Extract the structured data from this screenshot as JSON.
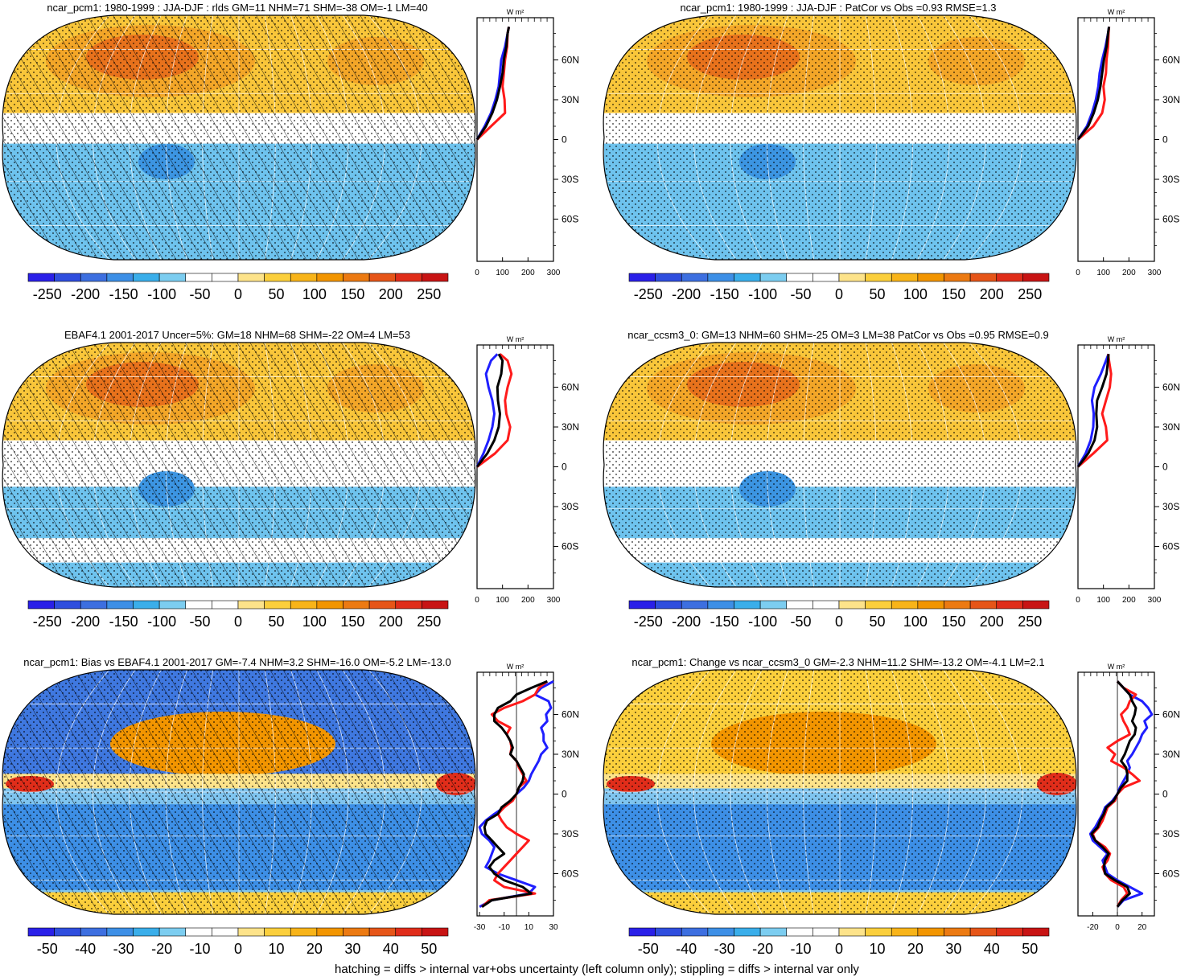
{
  "footer": "hatching = diffs > internal var+obs uncertainty (left column only); stippling = diffs > internal var only",
  "colors": {
    "obs_line": "#000000",
    "nh_line": "#1f1fff",
    "sh_line": "#ff1a1a",
    "coastline": "#000000",
    "graticule": "#ffffff"
  },
  "chart_data": [
    {
      "type": "heatmap",
      "title": "ncar_pcm1: 1980-1999 : JJA-DJF : rlds GM=11 NHM=71 SHM=-38 OM=-1 LM=40",
      "projection": "Robinson, centered on 150E",
      "pattern": "hatching + stippling",
      "colorbar": {
        "ticks": [
          "-250",
          "-200",
          "-150",
          "-100",
          "-50",
          "0",
          "50",
          "100",
          "150",
          "200",
          "250"
        ],
        "range": [
          -275,
          275
        ]
      },
      "zonal_mean": {
        "unit": "W m²",
        "xticks": [
          "0",
          "100",
          "200",
          "300"
        ],
        "xlim": [
          0,
          300
        ],
        "yticks": [
          "60N",
          "30N",
          "0",
          "30S",
          "60S"
        ],
        "lat": [
          0,
          10,
          20,
          30,
          40,
          50,
          60,
          70,
          80,
          85
        ],
        "series": [
          {
            "color": "blue",
            "values": [
              0,
              30,
              55,
              72,
              85,
              90,
              95,
              110,
              120,
              125
            ]
          },
          {
            "color": "red",
            "values": [
              0,
              55,
              110,
              108,
              100,
              105,
              110,
              118,
              120,
              125
            ]
          },
          {
            "color": "black",
            "values": [
              0,
              35,
              60,
              78,
              90,
              100,
              105,
              115,
              120,
              125
            ]
          }
        ]
      }
    },
    {
      "type": "heatmap",
      "title": "ncar_pcm1: 1980-1999 : JJA-DJF : PatCor vs Obs =0.93 RMSE=1.3",
      "projection": "Robinson, centered on 150E",
      "pattern": "stippling",
      "colorbar": {
        "ticks": [
          "-250",
          "-200",
          "-150",
          "-100",
          "-50",
          "0",
          "50",
          "100",
          "150",
          "200",
          "250"
        ],
        "range": [
          -275,
          275
        ]
      },
      "zonal_mean": {
        "unit": "W m²",
        "xticks": [
          "0",
          "100",
          "200",
          "300"
        ],
        "xlim": [
          0,
          300
        ],
        "yticks": [
          "60N",
          "30N",
          "0",
          "30S",
          "60S"
        ],
        "lat": [
          0,
          10,
          20,
          30,
          40,
          50,
          60,
          70,
          80,
          85
        ],
        "series": [
          {
            "color": "blue",
            "values": [
              0,
              35,
              55,
              70,
              80,
              85,
              95,
              108,
              118,
              122
            ]
          },
          {
            "color": "red",
            "values": [
              0,
              60,
              95,
              105,
              100,
              110,
              112,
              118,
              120,
              122
            ]
          },
          {
            "color": "black",
            "values": [
              0,
              40,
              62,
              78,
              88,
              95,
              102,
              112,
              118,
              122
            ]
          }
        ]
      }
    },
    {
      "type": "heatmap",
      "title": "EBAF4.1 2001-2017 Uncer=5%: GM=18 NHM=68 SHM=-22 OM=4 LM=53",
      "projection": "Robinson, centered on 150E",
      "pattern": "hatching + stippling",
      "colorbar": {
        "ticks": [
          "-250",
          "-200",
          "-150",
          "-100",
          "-50",
          "0",
          "50",
          "100",
          "150",
          "200",
          "250"
        ],
        "range": [
          -275,
          275
        ]
      },
      "zonal_mean": {
        "unit": "W m²",
        "xticks": [
          "0",
          "100",
          "200",
          "300"
        ],
        "xlim": [
          0,
          300
        ],
        "yticks": [
          "60N",
          "30N",
          "0",
          "30S",
          "60S"
        ],
        "lat": [
          0,
          10,
          20,
          30,
          40,
          50,
          60,
          70,
          80,
          85
        ],
        "series": [
          {
            "color": "blue",
            "values": [
              0,
              25,
              45,
              60,
              68,
              60,
              45,
              35,
              55,
              80
            ]
          },
          {
            "color": "red",
            "values": [
              0,
              70,
              120,
              130,
              115,
              110,
              120,
              135,
              120,
              90
            ]
          },
          {
            "color": "black",
            "values": [
              0,
              40,
              68,
              85,
              90,
              82,
              80,
              95,
              100,
              85
            ]
          }
        ]
      }
    },
    {
      "type": "heatmap",
      "title": "ncar_ccsm3_0: GM=13 NHM=60 SHM=-25 OM=3 LM=38 PatCor vs Obs =0.95 RMSE=0.9",
      "projection": "Robinson, centered on 150E",
      "pattern": "stippling",
      "colorbar": {
        "ticks": [
          "-250",
          "-200",
          "-150",
          "-100",
          "-50",
          "0",
          "50",
          "100",
          "150",
          "200",
          "250"
        ],
        "range": [
          -275,
          275
        ]
      },
      "zonal_mean": {
        "unit": "W m²",
        "xticks": [
          "0",
          "100",
          "200",
          "300"
        ],
        "xlim": [
          0,
          300
        ],
        "yticks": [
          "60N",
          "30N",
          "0",
          "30S",
          "60S"
        ],
        "lat": [
          0,
          10,
          20,
          30,
          40,
          50,
          60,
          70,
          80,
          85
        ],
        "series": [
          {
            "color": "blue",
            "values": [
              0,
              30,
              50,
              60,
              62,
              55,
              65,
              90,
              110,
              120
            ]
          },
          {
            "color": "red",
            "values": [
              0,
              60,
              115,
              110,
              95,
              110,
              125,
              130,
              122,
              118
            ]
          },
          {
            "color": "black",
            "values": [
              0,
              40,
              65,
              75,
              72,
              75,
              95,
              112,
              118,
              120
            ]
          }
        ]
      }
    },
    {
      "type": "heatmap",
      "title": "ncar_pcm1: Bias vs EBAF4.1 2001-2017 GM=-7.4 NHM=3.2 SHM=-16.0 OM=-5.2 LM=-13.0",
      "projection": "Robinson, centered on 150E",
      "pattern": "hatching + stippling",
      "colorbar": {
        "ticks": [
          "-50",
          "-40",
          "-30",
          "-20",
          "-10",
          "0",
          "10",
          "20",
          "30",
          "40",
          "50"
        ],
        "range": [
          -55,
          55
        ]
      },
      "zonal_mean": {
        "unit": "W m²",
        "xticks": [
          "-30",
          "-10",
          "10",
          "30"
        ],
        "xlim": [
          -32,
          30
        ],
        "yticks": [
          "60N",
          "30N",
          "0",
          "30S",
          "60S"
        ],
        "lat": [
          -85,
          -80,
          -75,
          -70,
          -65,
          -60,
          -55,
          -50,
          -45,
          -40,
          -35,
          -30,
          -25,
          -20,
          -15,
          -10,
          -5,
          0,
          5,
          10,
          15,
          20,
          25,
          30,
          35,
          40,
          45,
          50,
          55,
          60,
          65,
          70,
          75,
          80,
          85
        ],
        "series": [
          {
            "color": "blue",
            "values": [
              -30,
              -20,
              10,
              15,
              0,
              -15,
              -25,
              -22,
              -20,
              -18,
              -22,
              -28,
              -30,
              -25,
              -18,
              -10,
              -4,
              0,
              6,
              10,
              12,
              15,
              18,
              20,
              25,
              22,
              22,
              20,
              25,
              24,
              28,
              26,
              15,
              20,
              30
            ]
          },
          {
            "color": "red",
            "values": [
              -28,
              -22,
              15,
              -10,
              -18,
              -15,
              -10,
              -5,
              0,
              5,
              10,
              0,
              -8,
              -12,
              -15,
              -10,
              -3,
              0,
              2,
              8,
              5,
              2,
              0,
              -5,
              -4,
              -5,
              -8,
              -5,
              -15,
              -20,
              -10,
              5,
              15,
              18,
              25
            ]
          },
          {
            "color": "black",
            "values": [
              -28,
              -20,
              12,
              5,
              -10,
              -18,
              -22,
              -18,
              -10,
              -15,
              -20,
              -25,
              -26,
              -24,
              -15,
              -12,
              -5,
              0,
              2,
              5,
              6,
              3,
              0,
              -5,
              -3,
              -5,
              -8,
              -12,
              -18,
              -18,
              -15,
              -5,
              0,
              12,
              25
            ]
          }
        ]
      }
    },
    {
      "type": "heatmap",
      "title": "ncar_pcm1: Change vs ncar_ccsm3_0 GM=-2.3 NHM=11.2 SHM=-13.2 OM=-4.1 LM=2.1",
      "projection": "Robinson, centered on 150E",
      "pattern": "stippling",
      "colorbar": {
        "ticks": [
          "-50",
          "-40",
          "-30",
          "-20",
          "-10",
          "0",
          "10",
          "20",
          "30",
          "40",
          "50"
        ],
        "range": [
          -55,
          55
        ]
      },
      "zonal_mean": {
        "unit": "W m²",
        "xticks": [
          "-20",
          "0",
          "20"
        ],
        "xlim": [
          -32,
          30
        ],
        "yticks": [
          "60N",
          "30N",
          "0",
          "30S",
          "60S"
        ],
        "lat": [
          -85,
          -80,
          -75,
          -70,
          -65,
          -60,
          -55,
          -50,
          -45,
          -40,
          -35,
          -30,
          -25,
          -20,
          -15,
          -10,
          -5,
          0,
          5,
          10,
          15,
          20,
          25,
          30,
          35,
          40,
          45,
          50,
          55,
          60,
          65,
          70,
          75,
          80,
          85
        ],
        "series": [
          {
            "color": "blue",
            "values": [
              0,
              5,
              20,
              10,
              0,
              -8,
              -10,
              -12,
              -8,
              -14,
              -20,
              -22,
              -18,
              -15,
              -12,
              -10,
              -4,
              0,
              2,
              5,
              8,
              10,
              8,
              12,
              15,
              18,
              20,
              24,
              22,
              28,
              25,
              20,
              10,
              5,
              0
            ]
          },
          {
            "color": "red",
            "values": [
              0,
              3,
              8,
              5,
              -5,
              -10,
              -12,
              -8,
              -6,
              -10,
              -18,
              -20,
              -15,
              -12,
              -10,
              -8,
              -2,
              0,
              5,
              18,
              12,
              5,
              -5,
              -2,
              -8,
              0,
              10,
              8,
              5,
              3,
              8,
              10,
              15,
              5,
              0
            ]
          },
          {
            "color": "black",
            "values": [
              0,
              4,
              10,
              8,
              -2,
              -10,
              -11,
              -10,
              -7,
              -12,
              -18,
              -21,
              -16,
              -14,
              -11,
              -9,
              -3,
              0,
              3,
              8,
              8,
              7,
              3,
              6,
              8,
              10,
              14,
              15,
              12,
              14,
              15,
              12,
              10,
              5,
              0
            ]
          }
        ]
      }
    }
  ]
}
